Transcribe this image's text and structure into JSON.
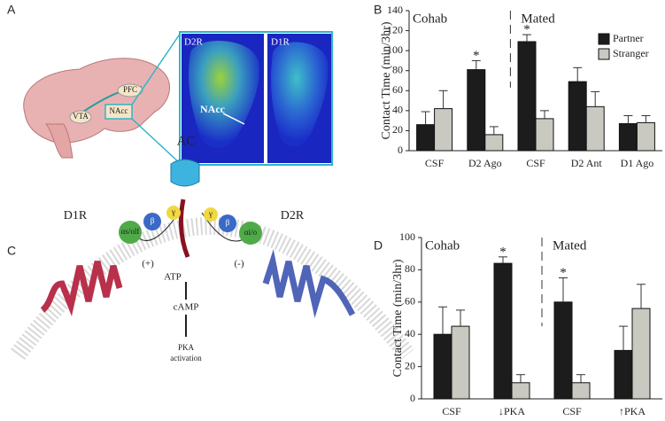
{
  "panel_labels": [
    "A",
    "B",
    "C",
    "D"
  ],
  "panel_a": {
    "brain_labels": [
      "PFC",
      "VTA",
      "NAcc"
    ],
    "image_labels": [
      "D2R",
      "D1R"
    ],
    "arrow_label": "NAcc"
  },
  "panel_c": {
    "cyclase": "AC",
    "receptors": [
      "D1R",
      "D2R"
    ],
    "left_subunits": [
      "αs/olf",
      "β",
      "γ"
    ],
    "right_subunits": [
      "γ",
      "β",
      "αi/o"
    ],
    "signs": [
      "(+)",
      "(-)"
    ],
    "substrate": "ATP",
    "product": "cAMP",
    "effect": [
      "PKA",
      "activation"
    ]
  },
  "chart_data": [
    {
      "type": "bar",
      "ylabel": "Contact Time (min/3hr)",
      "categories": [
        "CSF",
        "D2 Ago",
        "CSF",
        "D2 Ant",
        "D1 Ago"
      ],
      "groups": [
        {
          "name": "Cohab",
          "start": 0
        },
        {
          "name": "Mated",
          "start": 2
        }
      ],
      "series": [
        {
          "name": "Partner",
          "color": "#1c1c1c",
          "values": [
            26,
            81,
            109,
            69,
            27
          ],
          "errors": [
            13,
            9,
            7,
            14,
            8
          ]
        },
        {
          "name": "Stranger",
          "color": "#c9c9c1",
          "values": [
            42,
            16,
            32,
            44,
            28
          ],
          "errors": [
            18,
            8,
            8,
            15,
            7
          ]
        }
      ],
      "annotations": [
        {
          "text": "*",
          "category": 1,
          "series": 0
        },
        {
          "text": "*",
          "category": 2,
          "series": 0
        }
      ],
      "ylim": [
        0,
        140
      ],
      "yticks": [
        0,
        20,
        40,
        60,
        80,
        100,
        120,
        140
      ],
      "legend": "top-right"
    },
    {
      "type": "bar",
      "ylabel": "Contact Time (min/3hr)",
      "categories": [
        "CSF",
        "↓PKA",
        "CSF",
        "↑PKA"
      ],
      "groups": [
        {
          "name": "Cohab",
          "start": 0
        },
        {
          "name": "Mated",
          "start": 2
        }
      ],
      "series": [
        {
          "name": "Partner",
          "color": "#1c1c1c",
          "values": [
            40,
            84,
            60,
            30
          ],
          "errors": [
            17,
            4,
            15,
            15
          ]
        },
        {
          "name": "Stranger",
          "color": "#c9c9c1",
          "values": [
            45,
            10,
            10,
            56
          ],
          "errors": [
            10,
            5,
            5,
            15
          ]
        }
      ],
      "annotations": [
        {
          "text": "*",
          "category": 1,
          "series": 0
        },
        {
          "text": "*",
          "category": 2,
          "series": 0
        }
      ],
      "ylim": [
        0,
        100
      ],
      "yticks": [
        0,
        20,
        40,
        60,
        80,
        100
      ],
      "legend": "none"
    }
  ]
}
